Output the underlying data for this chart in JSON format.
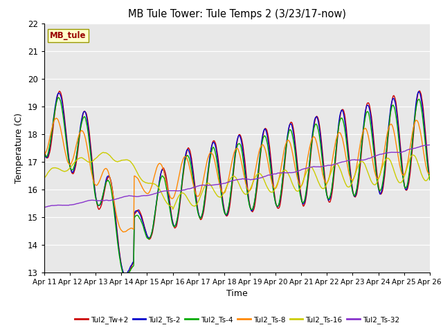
{
  "title": "MB Tule Tower: Tule Temps 2 (3/23/17-now)",
  "xlabel": "Time",
  "ylabel": "Temperature (C)",
  "ylim": [
    13.0,
    22.0
  ],
  "yticks": [
    13.0,
    14.0,
    15.0,
    16.0,
    17.0,
    18.0,
    19.0,
    20.0,
    21.0,
    22.0
  ],
  "xtick_labels": [
    "Apr 11",
    "Apr 12",
    "Apr 13",
    "Apr 14",
    "Apr 15",
    "Apr 16",
    "Apr 17",
    "Apr 18",
    "Apr 19",
    "Apr 20",
    "Apr 21",
    "Apr 22",
    "Apr 23",
    "Apr 24",
    "Apr 25",
    "Apr 26"
  ],
  "series_colors": [
    "#cc0000",
    "#0000cc",
    "#00aa00",
    "#ff8800",
    "#cccc00",
    "#8833cc"
  ],
  "series_labels": [
    "Tul2_Tw+2",
    "Tul2_Ts-2",
    "Tul2_Ts-4",
    "Tul2_Ts-8",
    "Tul2_Ts-16",
    "Tul2_Ts-32"
  ],
  "bg_color": "#e8e8e8",
  "legend_box_color": "#ffffcc",
  "legend_box_text": "MB_tule",
  "legend_box_text_color": "#990000",
  "legend_box_edge_color": "#999900"
}
